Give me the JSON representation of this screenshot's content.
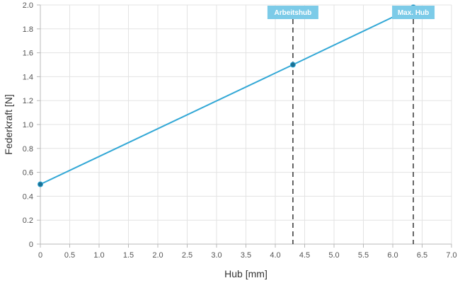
{
  "chart_data": {
    "type": "line",
    "xlabel": "Hub [mm]",
    "ylabel": "Federkraft [N]",
    "xlim": [
      0,
      7.0
    ],
    "ylim": [
      0,
      2.0
    ],
    "x_ticks": [
      "0",
      "0.5",
      "1.0",
      "1.5",
      "2.0",
      "2.5",
      "3.0",
      "3.5",
      "4.0",
      "4.5",
      "5.0",
      "5.5",
      "6.0",
      "6.5",
      "7.0"
    ],
    "x_tick_values": [
      0,
      0.5,
      1.0,
      1.5,
      2.0,
      2.5,
      3.0,
      3.5,
      4.0,
      4.5,
      5.0,
      5.5,
      6.0,
      6.5,
      7.0
    ],
    "y_ticks": [
      "0",
      "0.2",
      "0.4",
      "0.6",
      "0.8",
      "1.0",
      "1.2",
      "1.4",
      "1.6",
      "1.8",
      "2.0"
    ],
    "y_tick_values": [
      0,
      0.2,
      0.4,
      0.6,
      0.8,
      1.0,
      1.2,
      1.4,
      1.6,
      1.8,
      2.0
    ],
    "grid": true,
    "series": [
      {
        "color": "#33a8d6",
        "points": [
          {
            "x": 0,
            "y": 0.5
          },
          {
            "x": 4.3,
            "y": 1.5
          },
          {
            "x": 6.35,
            "y": 1.98
          }
        ]
      }
    ],
    "markers": [
      {
        "label": "Arbeitshub",
        "x": 4.3
      },
      {
        "label": "Max. Hub",
        "x": 6.35
      }
    ],
    "colors": {
      "series": "#33a8d6",
      "point": "#1b6f92",
      "marker_box": "#7ccbe8",
      "marker_line": "#333333"
    }
  }
}
